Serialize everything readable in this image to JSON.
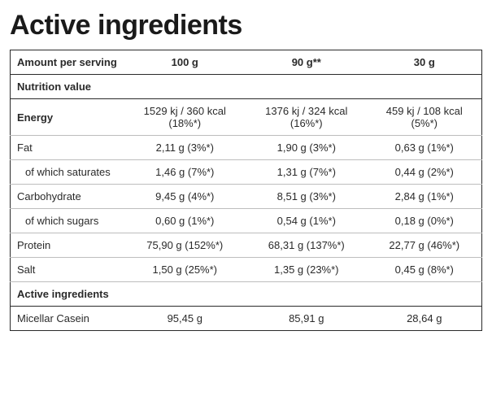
{
  "title": "Active ingredients",
  "columns": {
    "label": "Amount per serving",
    "c1": "100 g",
    "c2": "90 g**",
    "c3": "30 g"
  },
  "section1": "Nutrition value",
  "rows": [
    {
      "label": "Energy",
      "bold": true,
      "twoLine": true,
      "c1a": "1529 kj / 360 kcal",
      "c1b": "(18%*)",
      "c2a": "1376 kj / 324 kcal",
      "c2b": "(16%*)",
      "c3a": "459 kj / 108 kcal",
      "c3b": "(5%*)"
    },
    {
      "label": "Fat",
      "c1": "2,11 g (3%*)",
      "c2": "1,90 g (3%*)",
      "c3": "0,63 g (1%*)"
    },
    {
      "label": "of which saturates",
      "indent": true,
      "c1": "1,46 g (7%*)",
      "c2": "1,31 g (7%*)",
      "c3": "0,44 g (2%*)"
    },
    {
      "label": "Carbohydrate",
      "c1": "9,45 g (4%*)",
      "c2": "8,51 g (3%*)",
      "c3": "2,84 g (1%*)"
    },
    {
      "label": "of which sugars",
      "indent": true,
      "c1": "0,60 g (1%*)",
      "c2": "0,54 g (1%*)",
      "c3": "0,18 g (0%*)"
    },
    {
      "label": "Protein",
      "c1": "75,90 g (152%*)",
      "c2": "68,31 g (137%*)",
      "c3": "22,77 g (46%*)"
    },
    {
      "label": "Salt",
      "c1": "1,50 g (25%*)",
      "c2": "1,35 g (23%*)",
      "c3": "0,45 g (8%*)"
    }
  ],
  "section2": "Active ingredients",
  "rows2": [
    {
      "label": "Micellar Casein",
      "c1": "95,45 g",
      "c2": "85,91 g",
      "c3": "28,64 g"
    }
  ]
}
